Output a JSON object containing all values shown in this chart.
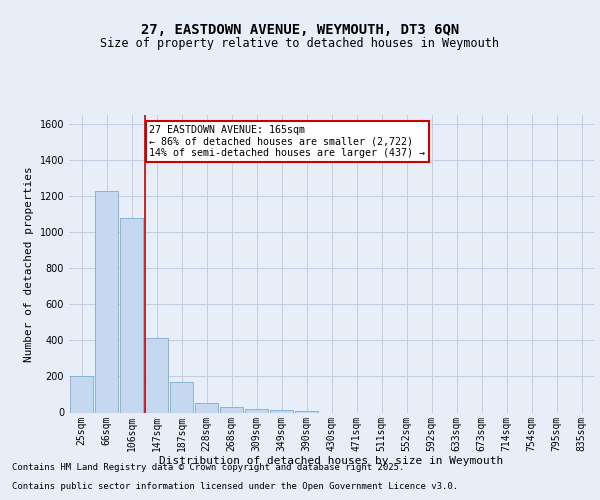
{
  "title_line1": "27, EASTDOWN AVENUE, WEYMOUTH, DT3 6QN",
  "title_line2": "Size of property relative to detached houses in Weymouth",
  "xlabel": "Distribution of detached houses by size in Weymouth",
  "ylabel": "Number of detached properties",
  "categories": [
    "25sqm",
    "66sqm",
    "106sqm",
    "147sqm",
    "187sqm",
    "228sqm",
    "268sqm",
    "309sqm",
    "349sqm",
    "390sqm",
    "430sqm",
    "471sqm",
    "511sqm",
    "552sqm",
    "592sqm",
    "633sqm",
    "673sqm",
    "714sqm",
    "754sqm",
    "795sqm",
    "835sqm"
  ],
  "values": [
    205,
    1230,
    1080,
    415,
    170,
    50,
    30,
    22,
    12,
    10,
    0,
    0,
    0,
    0,
    0,
    0,
    0,
    0,
    0,
    0,
    0
  ],
  "bar_color": "#c5d8f0",
  "bar_edge_color": "#7aadd4",
  "annotation_line1": "27 EASTDOWN AVENUE: 165sqm",
  "annotation_line2": "← 86% of detached houses are smaller (2,722)",
  "annotation_line3": "14% of semi-detached houses are larger (437) →",
  "vline_color": "#cc0000",
  "vline_x_index": 2.5,
  "ylim": [
    0,
    1650
  ],
  "yticks": [
    0,
    200,
    400,
    600,
    800,
    1000,
    1200,
    1400,
    1600
  ],
  "footnote_line1": "Contains HM Land Registry data © Crown copyright and database right 2025.",
  "footnote_line2": "Contains public sector information licensed under the Open Government Licence v3.0.",
  "background_color": "#e8eef8",
  "grid_color": "#c0cce0",
  "title_fontsize": 10,
  "subtitle_fontsize": 8.5,
  "ylabel_fontsize": 8,
  "xlabel_fontsize": 8,
  "tick_fontsize": 7,
  "footnote_fontsize": 6.5
}
